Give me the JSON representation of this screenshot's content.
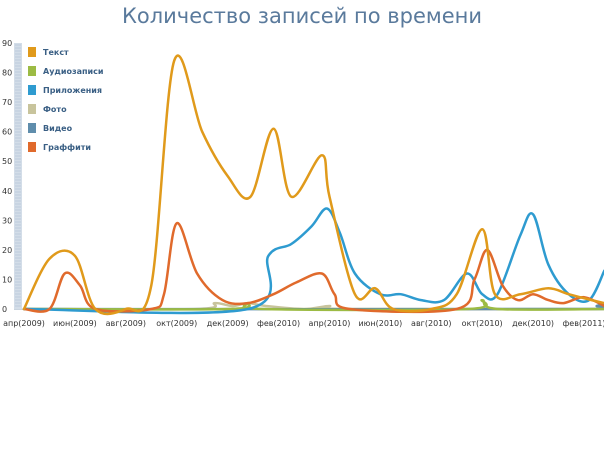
{
  "title": "Количество записей по времени",
  "chart_data": {
    "type": "line",
    "title": "Количество записей по времени",
    "ylim": [
      0,
      90
    ],
    "yticks": [
      "0",
      "10",
      "20",
      "30",
      "40",
      "50",
      "60",
      "70",
      "80",
      "90"
    ],
    "xlim": [
      0,
      22
    ],
    "xticks": [
      {
        "x": 0,
        "label": "апр(2009)"
      },
      {
        "x": 2,
        "label": "июн(2009)"
      },
      {
        "x": 4,
        "label": "авг(2009)"
      },
      {
        "x": 6,
        "label": "окт(2009)"
      },
      {
        "x": 8,
        "label": "дек(2009)"
      },
      {
        "x": 10,
        "label": "фев(2010)"
      },
      {
        "x": 12,
        "label": "апр(2010)"
      },
      {
        "x": 14,
        "label": "июн(2010)"
      },
      {
        "x": 16,
        "label": "авг(2010)"
      },
      {
        "x": 18,
        "label": "окт(2010)"
      },
      {
        "x": 20,
        "label": "дек(2010)"
      },
      {
        "x": 22,
        "label": "фев(2011)"
      }
    ],
    "legend_position": "top-left",
    "grid": false,
    "series": [
      {
        "name": "Текст",
        "color": "#e09a1b",
        "points": [
          [
            0,
            0
          ],
          [
            1,
            17
          ],
          [
            2,
            18
          ],
          [
            2.8,
            0
          ],
          [
            4,
            0
          ],
          [
            5,
            8
          ],
          [
            5.9,
            84
          ],
          [
            7,
            60
          ],
          [
            8,
            45
          ],
          [
            8.9,
            38
          ],
          [
            9.8,
            61
          ],
          [
            10.5,
            38
          ],
          [
            11.7,
            52
          ],
          [
            12,
            38
          ],
          [
            13,
            5
          ],
          [
            13.8,
            7
          ],
          [
            14.5,
            0
          ],
          [
            16,
            0
          ],
          [
            17,
            5
          ],
          [
            18,
            27
          ],
          [
            18.5,
            5
          ],
          [
            19.5,
            5
          ],
          [
            20.6,
            7
          ],
          [
            21.4,
            5
          ],
          [
            22.3,
            3
          ],
          [
            22.8,
            2
          ]
        ]
      },
      {
        "name": "Аудиозаписи",
        "color": "#9cbb44",
        "points": [
          [
            0,
            0
          ],
          [
            8,
            0
          ],
          [
            8.8,
            2
          ],
          [
            9.4,
            0
          ],
          [
            17.4,
            0
          ],
          [
            18,
            3
          ],
          [
            18.6,
            0
          ],
          [
            22.8,
            0
          ]
        ]
      },
      {
        "name": "Приложения",
        "color": "#2e9bd0",
        "points": [
          [
            0,
            0
          ],
          [
            8.8,
            0
          ],
          [
            9.6,
            18
          ],
          [
            10.5,
            22
          ],
          [
            11.3,
            28
          ],
          [
            11.9,
            34
          ],
          [
            12.4,
            26
          ],
          [
            13,
            12
          ],
          [
            14,
            5
          ],
          [
            14.8,
            5
          ],
          [
            15.6,
            3
          ],
          [
            16.5,
            3
          ],
          [
            17.4,
            12
          ],
          [
            18,
            5
          ],
          [
            18.6,
            5
          ],
          [
            19.5,
            25
          ],
          [
            20,
            32
          ],
          [
            20.6,
            15
          ],
          [
            21.4,
            5
          ],
          [
            22.2,
            3
          ],
          [
            22.8,
            13
          ]
        ]
      },
      {
        "name": "Фото",
        "color": "#c8c49c",
        "points": [
          [
            0,
            0
          ],
          [
            6.8,
            0
          ],
          [
            7.5,
            2
          ],
          [
            8.2,
            1
          ],
          [
            8.8,
            2
          ],
          [
            9.5,
            1
          ],
          [
            11,
            0
          ],
          [
            12,
            1
          ],
          [
            12.5,
            0
          ],
          [
            22.8,
            0
          ]
        ]
      },
      {
        "name": "Видео",
        "color": "#5f8dac",
        "points": [
          [
            0,
            0
          ],
          [
            22,
            0
          ],
          [
            22.5,
            1
          ],
          [
            22.8,
            2
          ]
        ]
      },
      {
        "name": "Граффити",
        "color": "#e06a2c",
        "points": [
          [
            0,
            0
          ],
          [
            1,
            0
          ],
          [
            1.6,
            12
          ],
          [
            2.2,
            8
          ],
          [
            2.8,
            0
          ],
          [
            5,
            0
          ],
          [
            5.5,
            5
          ],
          [
            6,
            29
          ],
          [
            6.8,
            12
          ],
          [
            7.8,
            3
          ],
          [
            8.8,
            2
          ],
          [
            9.8,
            5
          ],
          [
            10.7,
            9
          ],
          [
            11.7,
            12
          ],
          [
            12.2,
            5
          ],
          [
            12.8,
            0
          ],
          [
            17,
            0
          ],
          [
            17.7,
            10
          ],
          [
            18.2,
            20
          ],
          [
            18.8,
            8
          ],
          [
            19.4,
            3
          ],
          [
            20,
            5
          ],
          [
            20.6,
            3
          ],
          [
            21.2,
            2
          ],
          [
            22,
            4
          ],
          [
            22.8,
            1
          ]
        ]
      }
    ]
  }
}
